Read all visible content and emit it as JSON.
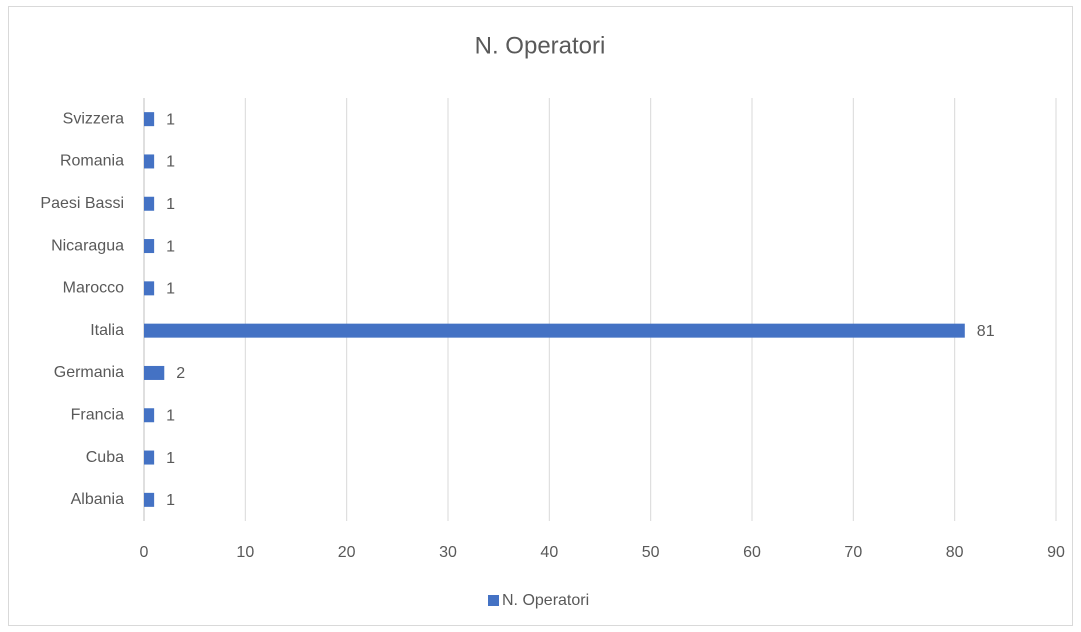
{
  "chart_data": {
    "type": "bar",
    "orientation": "horizontal",
    "title": "N. Operatori",
    "categories": [
      "Albania",
      "Cuba",
      "Francia",
      "Germania",
      "Italia",
      "Marocco",
      "Nicaragua",
      "Paesi Bassi",
      "Romania",
      "Svizzera"
    ],
    "series": [
      {
        "name": "N. Operatori",
        "color": "#4472c4",
        "values": [
          1,
          1,
          1,
          2,
          81,
          1,
          1,
          1,
          1,
          1
        ]
      }
    ],
    "xlim": [
      0,
      90
    ],
    "xticks": [
      0,
      10,
      20,
      30,
      40,
      50,
      60,
      70,
      80,
      90
    ],
    "grid": true,
    "legend": "bottom"
  }
}
